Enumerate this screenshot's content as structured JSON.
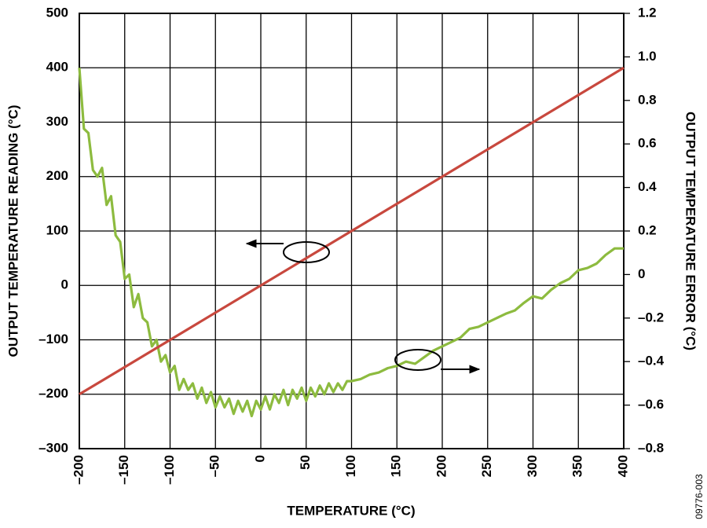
{
  "chart_data": {
    "type": "line",
    "xlabel": "TEMPERATURE (°C)",
    "ylabel": "OUTPUT TEMPERATURE READING (°C)",
    "y2label": "OUTPUT TEMPERATURE ERROR (°C)",
    "annotations": [
      "09776-003"
    ],
    "grid": true,
    "xlim": [
      -200,
      400
    ],
    "xticks": [
      {
        "value": -200,
        "label": "–200"
      },
      {
        "value": -150,
        "label": "–150"
      },
      {
        "value": -100,
        "label": "–100"
      },
      {
        "value": -50,
        "label": "–50"
      },
      0,
      50,
      100,
      150,
      200,
      250,
      300,
      350,
      400
    ],
    "ylim": [
      -300,
      500
    ],
    "yticks": [
      {
        "value": -300,
        "label": "–300"
      },
      {
        "value": -200,
        "label": "–200"
      },
      {
        "value": -100,
        "label": "–100"
      },
      0,
      100,
      200,
      300,
      400,
      500
    ],
    "y2lim": [
      -0.8,
      1.2
    ],
    "y2ticks": [
      {
        "value": -0.8,
        "label": "–0.8"
      },
      {
        "value": -0.6,
        "label": "–0.6"
      },
      {
        "value": -0.4,
        "label": "–0.4"
      },
      {
        "value": -0.2,
        "label": "–0.2"
      },
      0,
      0.2,
      0.4,
      0.6,
      0.8,
      {
        "value": 1.0,
        "label": "1.0"
      },
      1.2
    ],
    "series": [
      {
        "name": "Output Temperature Reading",
        "color": "#c8483e",
        "x": [
          -200,
          400
        ],
        "values": [
          -200,
          400
        ]
      },
      {
        "name": "Output Temperature Error",
        "color": "#8dbb3f",
        "axis": "y2",
        "x": [
          -200,
          -195,
          -190,
          -185,
          -180,
          -175,
          -170,
          -165,
          -160,
          -155,
          -150,
          -145,
          -140,
          -135,
          -130,
          -125,
          -120,
          -115,
          -110,
          -105,
          -100,
          -95,
          -90,
          -85,
          -80,
          -75,
          -70,
          -65,
          -60,
          -55,
          -50,
          -45,
          -40,
          -35,
          -30,
          -25,
          -20,
          -15,
          -10,
          -5,
          0,
          5,
          10,
          15,
          20,
          25,
          30,
          35,
          40,
          45,
          50,
          55,
          60,
          65,
          70,
          75,
          80,
          85,
          90,
          95,
          100,
          110,
          120,
          130,
          140,
          150,
          160,
          170,
          180,
          190,
          200,
          210,
          220,
          230,
          240,
          250,
          260,
          270,
          280,
          290,
          300,
          310,
          320,
          330,
          340,
          350,
          360,
          370,
          380,
          390,
          400
        ],
        "values": [
          0.95,
          0.67,
          0.65,
          0.48,
          0.45,
          0.49,
          0.32,
          0.36,
          0.18,
          0.15,
          -0.02,
          0.0,
          -0.15,
          -0.09,
          -0.2,
          -0.22,
          -0.33,
          -0.3,
          -0.4,
          -0.37,
          -0.45,
          -0.42,
          -0.53,
          -0.48,
          -0.53,
          -0.5,
          -0.57,
          -0.52,
          -0.59,
          -0.54,
          -0.61,
          -0.56,
          -0.61,
          -0.57,
          -0.64,
          -0.58,
          -0.63,
          -0.58,
          -0.65,
          -0.58,
          -0.62,
          -0.56,
          -0.62,
          -0.55,
          -0.59,
          -0.53,
          -0.6,
          -0.53,
          -0.57,
          -0.52,
          -0.58,
          -0.52,
          -0.56,
          -0.51,
          -0.55,
          -0.5,
          -0.54,
          -0.5,
          -0.53,
          -0.49,
          -0.49,
          -0.48,
          -0.46,
          -0.45,
          -0.43,
          -0.42,
          -0.4,
          -0.41,
          -0.38,
          -0.35,
          -0.33,
          -0.31,
          -0.29,
          -0.25,
          -0.24,
          -0.22,
          -0.2,
          -0.18,
          -0.165,
          -0.13,
          -0.1,
          -0.11,
          -0.07,
          -0.04,
          -0.02,
          0.02,
          0.03,
          0.05,
          0.09,
          0.12,
          0.12
        ]
      }
    ]
  }
}
